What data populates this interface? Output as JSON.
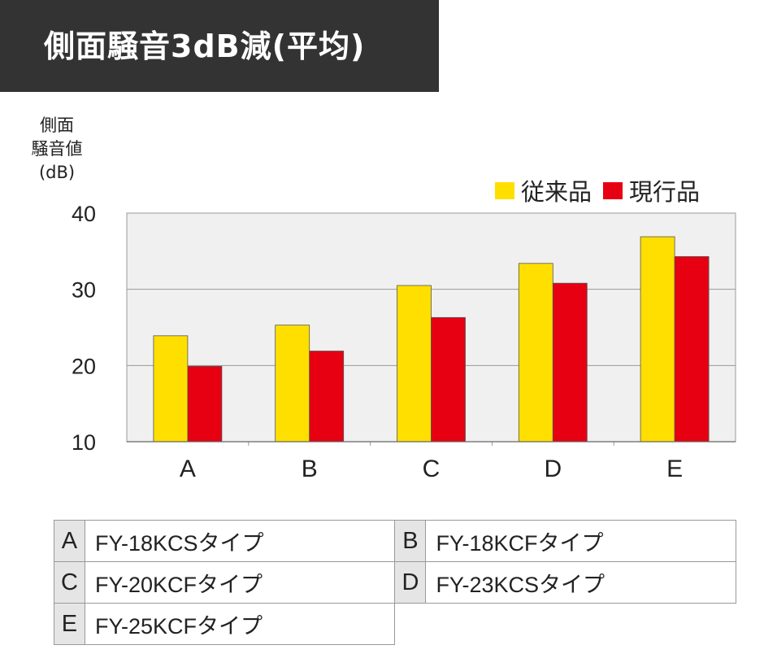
{
  "title": "側面騒音3dB減(平均)",
  "key_table": [
    [
      {
        "letter": "A",
        "model": "FY-18KCSタイプ"
      },
      {
        "letter": "B",
        "model": "FY-18KCFタイプ"
      }
    ],
    [
      {
        "letter": "C",
        "model": "FY-20KCFタイプ"
      },
      {
        "letter": "D",
        "model": "FY-23KCSタイプ"
      }
    ],
    [
      {
        "letter": "E",
        "model": "FY-25KCFタイプ"
      }
    ]
  ],
  "colors": {
    "banner": "#333333",
    "plot_bg": "#f0f0f0",
    "old": "#ffdf00",
    "new": "#e60012"
  },
  "chart_data": {
    "type": "bar",
    "title": "側面騒音3dB減(平均)",
    "ylabel": "側面\n騒音値\n(dB)",
    "xlabel": "",
    "categories": [
      "A",
      "B",
      "C",
      "D",
      "E"
    ],
    "series": [
      {
        "name": "従来品",
        "values": [
          23.9,
          25.3,
          30.5,
          33.4,
          36.9
        ]
      },
      {
        "name": "現行品",
        "values": [
          19.9,
          21.9,
          26.3,
          30.8,
          34.3
        ]
      }
    ],
    "ylim": [
      10,
      40
    ],
    "yticks": [
      "10",
      "20",
      "30",
      "40"
    ],
    "grid": true,
    "legend_position": "top-right"
  }
}
